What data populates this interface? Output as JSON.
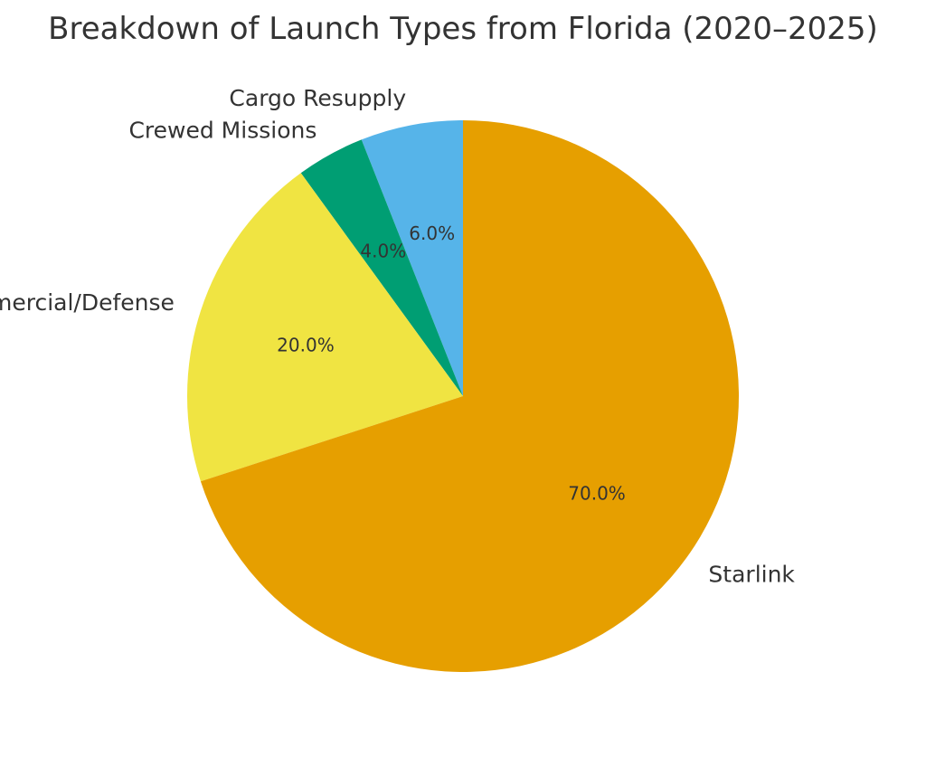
{
  "chart_data": {
    "type": "pie",
    "title": "Breakdown of Launch Types from Florida (2020–2025)",
    "start_angle_deg": 90,
    "direction": "counterclockwise",
    "slices": [
      {
        "label": "Cargo Resupply",
        "value": 6.0,
        "pct_label": "6.0%",
        "color": "#56B4E9"
      },
      {
        "label": "Crewed Missions",
        "value": 4.0,
        "pct_label": "4.0%",
        "color": "#009E73"
      },
      {
        "label": "Commercial/Defense",
        "value": 20.0,
        "pct_label": "20.0%",
        "color": "#F0E442"
      },
      {
        "label": "Starlink",
        "value": 70.0,
        "pct_label": "70.0%",
        "color": "#E69F00"
      }
    ]
  }
}
